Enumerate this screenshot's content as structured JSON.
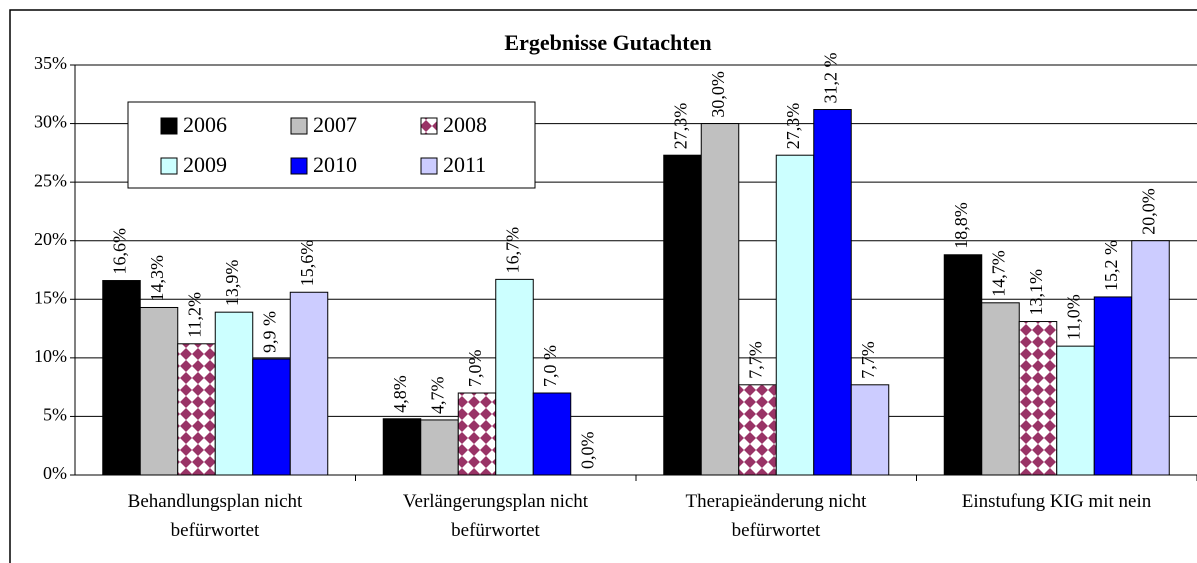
{
  "chart_data": {
    "type": "bar",
    "title": "Ergebnisse Gutachten",
    "categories": [
      "Behandlungsplan nicht\nbefürwortet",
      "Verlängerungsplan nicht\nbefürwortet",
      "Therapieänderung nicht\nbefürwortet",
      "Einstufung KIG mit nein"
    ],
    "series": [
      {
        "name": "2006",
        "color": "#000000",
        "values": [
          16.6,
          4.8,
          27.3,
          18.8
        ],
        "value_labels": [
          "16,6%",
          "4,8%",
          "27,3%",
          "18,8%"
        ]
      },
      {
        "name": "2007",
        "color": "#c0c0c0",
        "values": [
          14.3,
          4.7,
          30.0,
          14.7
        ],
        "value_labels": [
          "14,3%",
          "4,7%",
          "30,0%",
          "14,7%"
        ]
      },
      {
        "name": "2008",
        "color": "#993366",
        "pattern": "diamonds",
        "values": [
          11.2,
          7.0,
          7.7,
          13.1
        ],
        "value_labels": [
          "11,2%",
          "7,0%",
          "7,7%",
          "13,1%"
        ]
      },
      {
        "name": "2009",
        "color": "#ccffff",
        "values": [
          13.9,
          16.7,
          27.3,
          11.0
        ],
        "value_labels": [
          "13,9%",
          "16,7%",
          "27,3%",
          "11,0%"
        ]
      },
      {
        "name": "2010",
        "color": "#0000ff",
        "values": [
          9.9,
          7.0,
          31.2,
          15.2
        ],
        "value_labels": [
          "9,9 %",
          "7,0 %",
          "31,2 %",
          "15,2 %"
        ]
      },
      {
        "name": "2011",
        "color": "#ccccff",
        "values": [
          15.6,
          0.0,
          7.7,
          20.0
        ],
        "value_labels": [
          "15,6%",
          "0,0%",
          "7,7%",
          "20,0%"
        ]
      }
    ],
    "ylim": [
      0,
      35
    ],
    "yticks": [
      {
        "value": 0,
        "label": "0%"
      },
      {
        "value": 5,
        "label": "5%"
      },
      {
        "value": 10,
        "label": "10%"
      },
      {
        "value": 15,
        "label": "15%"
      },
      {
        "value": 20,
        "label": "20%"
      },
      {
        "value": 25,
        "label": "25%"
      },
      {
        "value": 30,
        "label": "30%"
      },
      {
        "value": 35,
        "label": "35%"
      }
    ],
    "grid": true,
    "legend": "upper left"
  }
}
